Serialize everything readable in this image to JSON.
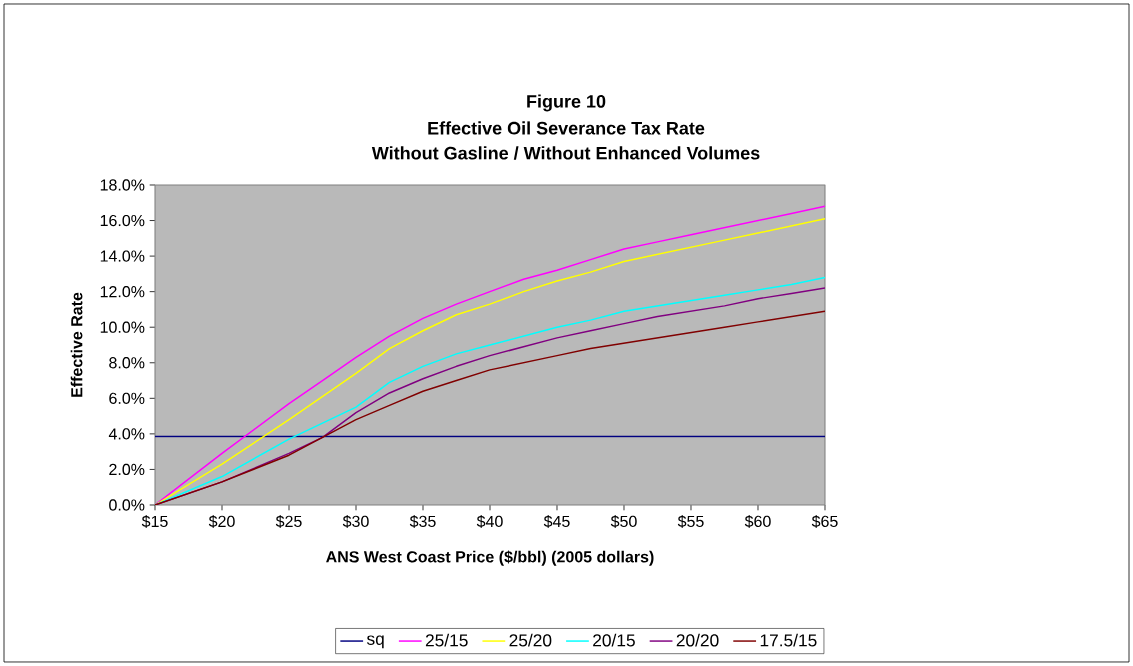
{
  "chart_data": {
    "type": "line",
    "title": "Figure 10",
    "subtitle": "Effective Oil Severance Tax Rate",
    "annotations": [
      "Without Gasline / Without Enhanced Volumes"
    ],
    "xlabel": "ANS West Coast Price ($/bbl) (2005 dollars)",
    "ylabel": "Effective Rate",
    "x": [
      15,
      20,
      25,
      27.5,
      30,
      32.5,
      35,
      37.5,
      40,
      42.5,
      45,
      47.5,
      50,
      52.5,
      55,
      57.5,
      60,
      62.5,
      65
    ],
    "series": [
      {
        "name": "sq",
        "color": "#000080",
        "x": [
          15,
          65
        ],
        "values": [
          3.85,
          3.85
        ]
      },
      {
        "name": "25/15",
        "color": "#ff00ff",
        "values": [
          0,
          2.9,
          5.7,
          7.0,
          8.3,
          9.5,
          10.5,
          11.3,
          12.0,
          12.7,
          13.2,
          13.8,
          14.4,
          14.8,
          15.2,
          15.6,
          16.0,
          16.4,
          16.8
        ]
      },
      {
        "name": "25/20",
        "color": "#ffff00",
        "values": [
          0,
          2.3,
          4.8,
          6.1,
          7.4,
          8.8,
          9.8,
          10.7,
          11.3,
          12.0,
          12.6,
          13.1,
          13.7,
          14.1,
          14.5,
          14.9,
          15.3,
          15.7,
          16.1
        ]
      },
      {
        "name": "20/15",
        "color": "#00ffff",
        "values": [
          0,
          1.6,
          3.7,
          4.6,
          5.5,
          6.9,
          7.8,
          8.5,
          9.0,
          9.5,
          10.0,
          10.4,
          10.9,
          11.2,
          11.5,
          11.8,
          12.1,
          12.4,
          12.8
        ]
      },
      {
        "name": "20/20",
        "color": "#800080",
        "values": [
          0,
          1.3,
          2.9,
          3.8,
          5.2,
          6.3,
          7.1,
          7.8,
          8.4,
          8.9,
          9.4,
          9.8,
          10.2,
          10.6,
          10.9,
          11.2,
          11.6,
          11.9,
          12.2
        ]
      },
      {
        "name": "17.5/15",
        "color": "#800000",
        "values": [
          0,
          1.3,
          2.8,
          3.8,
          4.8,
          5.6,
          6.4,
          7.0,
          7.6,
          8.0,
          8.4,
          8.8,
          9.1,
          9.4,
          9.7,
          10.0,
          10.3,
          10.6,
          10.9
        ]
      }
    ],
    "xlim": [
      15,
      65
    ],
    "xticks": [
      {
        "value": 15,
        "label": "$15"
      },
      {
        "value": 20,
        "label": "$20"
      },
      {
        "value": 25,
        "label": "$25"
      },
      {
        "value": 30,
        "label": "$30"
      },
      {
        "value": 35,
        "label": "$35"
      },
      {
        "value": 40,
        "label": "$40"
      },
      {
        "value": 45,
        "label": "$45"
      },
      {
        "value": 50,
        "label": "$50"
      },
      {
        "value": 55,
        "label": "$55"
      },
      {
        "value": 60,
        "label": "$60"
      },
      {
        "value": 65,
        "label": "$65"
      }
    ],
    "ylim": [
      0,
      18
    ],
    "yticks": [
      {
        "value": 0,
        "label": "0.0%"
      },
      {
        "value": 2,
        "label": "2.0%"
      },
      {
        "value": 4,
        "label": "4.0%"
      },
      {
        "value": 6,
        "label": "6.0%"
      },
      {
        "value": 8,
        "label": "8.0%"
      },
      {
        "value": 10,
        "label": "10.0%"
      },
      {
        "value": 12,
        "label": "12.0%"
      },
      {
        "value": 14,
        "label": "14.0%"
      },
      {
        "value": 16,
        "label": "16.0%"
      },
      {
        "value": 18,
        "label": "18.0%"
      }
    ],
    "grid": false,
    "legend": "bottom",
    "marker": "none",
    "line_style": "solid"
  }
}
